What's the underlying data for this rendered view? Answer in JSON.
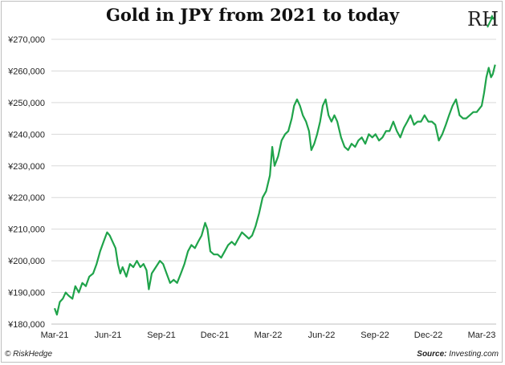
{
  "chart_data": {
    "type": "line",
    "title": "Gold in JPY from 2021 to today",
    "xlabel": "",
    "ylabel": "",
    "ylim": [
      180000,
      270000
    ],
    "y_ticks": [
      "¥180,000",
      "¥190,000",
      "¥200,000",
      "¥210,000",
      "¥220,000",
      "¥230,000",
      "¥240,000",
      "¥250,000",
      "¥260,000",
      "¥270,000"
    ],
    "x_ticks": [
      "Mar-21",
      "Jun-21",
      "Sep-21",
      "Dec-21",
      "Mar-22",
      "Jun-22",
      "Sep-22",
      "Dec-22",
      "Mar-23"
    ],
    "x_start": "Mar-21",
    "x_end": "Mar-23",
    "grid": "horizontal",
    "legend": "none",
    "series": [
      {
        "color": "#1fa34a",
        "points": [
          [
            "2021-03-01",
            185000
          ],
          [
            "2021-03-05",
            183000
          ],
          [
            "2021-03-10",
            187000
          ],
          [
            "2021-03-15",
            188000
          ],
          [
            "2021-03-20",
            190000
          ],
          [
            "2021-03-25",
            189000
          ],
          [
            "2021-04-01",
            188000
          ],
          [
            "2021-04-06",
            192000
          ],
          [
            "2021-04-12",
            190000
          ],
          [
            "2021-04-18",
            193000
          ],
          [
            "2021-04-24",
            192000
          ],
          [
            "2021-04-30",
            195000
          ],
          [
            "2021-05-06",
            196000
          ],
          [
            "2021-05-12",
            199000
          ],
          [
            "2021-05-18",
            203000
          ],
          [
            "2021-05-24",
            206000
          ],
          [
            "2021-05-30",
            209000
          ],
          [
            "2021-06-04",
            208000
          ],
          [
            "2021-06-09",
            206000
          ],
          [
            "2021-06-14",
            204000
          ],
          [
            "2021-06-18",
            199000
          ],
          [
            "2021-06-22",
            196000
          ],
          [
            "2021-06-26",
            198000
          ],
          [
            "2021-07-02",
            195000
          ],
          [
            "2021-07-08",
            199000
          ],
          [
            "2021-07-14",
            198000
          ],
          [
            "2021-07-20",
            200000
          ],
          [
            "2021-07-26",
            198000
          ],
          [
            "2021-08-01",
            199000
          ],
          [
            "2021-08-06",
            197000
          ],
          [
            "2021-08-10",
            191000
          ],
          [
            "2021-08-15",
            196000
          ],
          [
            "2021-08-22",
            198000
          ],
          [
            "2021-08-29",
            200000
          ],
          [
            "2021-09-04",
            199000
          ],
          [
            "2021-09-10",
            196000
          ],
          [
            "2021-09-16",
            193000
          ],
          [
            "2021-09-22",
            194000
          ],
          [
            "2021-09-28",
            193000
          ],
          [
            "2021-10-04",
            196000
          ],
          [
            "2021-10-10",
            199000
          ],
          [
            "2021-10-16",
            203000
          ],
          [
            "2021-10-22",
            205000
          ],
          [
            "2021-10-28",
            204000
          ],
          [
            "2021-11-03",
            206000
          ],
          [
            "2021-11-09",
            208000
          ],
          [
            "2021-11-15",
            212000
          ],
          [
            "2021-11-19",
            210000
          ],
          [
            "2021-11-24",
            203000
          ],
          [
            "2021-11-30",
            202000
          ],
          [
            "2021-12-06",
            202000
          ],
          [
            "2021-12-12",
            201000
          ],
          [
            "2021-12-18",
            203000
          ],
          [
            "2021-12-24",
            205000
          ],
          [
            "2021-12-30",
            206000
          ],
          [
            "2022-01-05",
            205000
          ],
          [
            "2022-01-11",
            207000
          ],
          [
            "2022-01-17",
            209000
          ],
          [
            "2022-01-23",
            208000
          ],
          [
            "2022-01-29",
            207000
          ],
          [
            "2022-02-04",
            208000
          ],
          [
            "2022-02-10",
            211000
          ],
          [
            "2022-02-16",
            215000
          ],
          [
            "2022-02-22",
            220000
          ],
          [
            "2022-02-28",
            222000
          ],
          [
            "2022-03-04",
            227000
          ],
          [
            "2022-03-08",
            236000
          ],
          [
            "2022-03-12",
            230000
          ],
          [
            "2022-03-18",
            233000
          ],
          [
            "2022-03-24",
            238000
          ],
          [
            "2022-03-30",
            240000
          ],
          [
            "2022-04-05",
            241000
          ],
          [
            "2022-04-11",
            245000
          ],
          [
            "2022-04-15",
            249000
          ],
          [
            "2022-04-20",
            251000
          ],
          [
            "2022-04-25",
            249000
          ],
          [
            "2022-04-30",
            246000
          ],
          [
            "2022-05-05",
            244000
          ],
          [
            "2022-05-10",
            241000
          ],
          [
            "2022-05-14",
            235000
          ],
          [
            "2022-05-19",
            237000
          ],
          [
            "2022-05-24",
            240000
          ],
          [
            "2022-05-29",
            244000
          ],
          [
            "2022-06-03",
            249000
          ],
          [
            "2022-06-08",
            251000
          ],
          [
            "2022-06-13",
            246000
          ],
          [
            "2022-06-18",
            244000
          ],
          [
            "2022-06-23",
            246000
          ],
          [
            "2022-06-28",
            244000
          ],
          [
            "2022-07-04",
            239000
          ],
          [
            "2022-07-10",
            236000
          ],
          [
            "2022-07-16",
            235000
          ],
          [
            "2022-07-22",
            237000
          ],
          [
            "2022-07-28",
            236000
          ],
          [
            "2022-08-03",
            238000
          ],
          [
            "2022-08-09",
            239000
          ],
          [
            "2022-08-15",
            237000
          ],
          [
            "2022-08-21",
            240000
          ],
          [
            "2022-08-27",
            239000
          ],
          [
            "2022-09-02",
            240000
          ],
          [
            "2022-09-08",
            238000
          ],
          [
            "2022-09-14",
            239000
          ],
          [
            "2022-09-20",
            241000
          ],
          [
            "2022-09-26",
            241000
          ],
          [
            "2022-10-02",
            244000
          ],
          [
            "2022-10-08",
            241000
          ],
          [
            "2022-10-14",
            239000
          ],
          [
            "2022-10-20",
            242000
          ],
          [
            "2022-10-26",
            244000
          ],
          [
            "2022-11-01",
            246000
          ],
          [
            "2022-11-07",
            243000
          ],
          [
            "2022-11-13",
            244000
          ],
          [
            "2022-11-19",
            244000
          ],
          [
            "2022-11-25",
            246000
          ],
          [
            "2022-12-01",
            244000
          ],
          [
            "2022-12-07",
            244000
          ],
          [
            "2022-12-13",
            243000
          ],
          [
            "2022-12-19",
            238000
          ],
          [
            "2022-12-25",
            240000
          ],
          [
            "2022-12-31",
            243000
          ],
          [
            "2023-01-06",
            246000
          ],
          [
            "2023-01-12",
            249000
          ],
          [
            "2023-01-18",
            251000
          ],
          [
            "2023-01-24",
            246000
          ],
          [
            "2023-01-30",
            245000
          ],
          [
            "2023-02-05",
            245000
          ],
          [
            "2023-02-11",
            246000
          ],
          [
            "2023-02-17",
            247000
          ],
          [
            "2023-02-23",
            247000
          ],
          [
            "2023-03-01",
            249000
          ],
          [
            "2023-03-05",
            253000
          ],
          [
            "2023-03-09",
            258000
          ],
          [
            "2023-03-13",
            261000
          ],
          [
            "2023-03-17",
            258000
          ],
          [
            "2023-03-20",
            259000
          ],
          [
            "2023-03-24",
            262000
          ]
        ]
      }
    ]
  },
  "logo_text": "RH",
  "footer": {
    "left": "© RiskHedge",
    "right_label": "Source:",
    "right_value": "Investing.com"
  }
}
